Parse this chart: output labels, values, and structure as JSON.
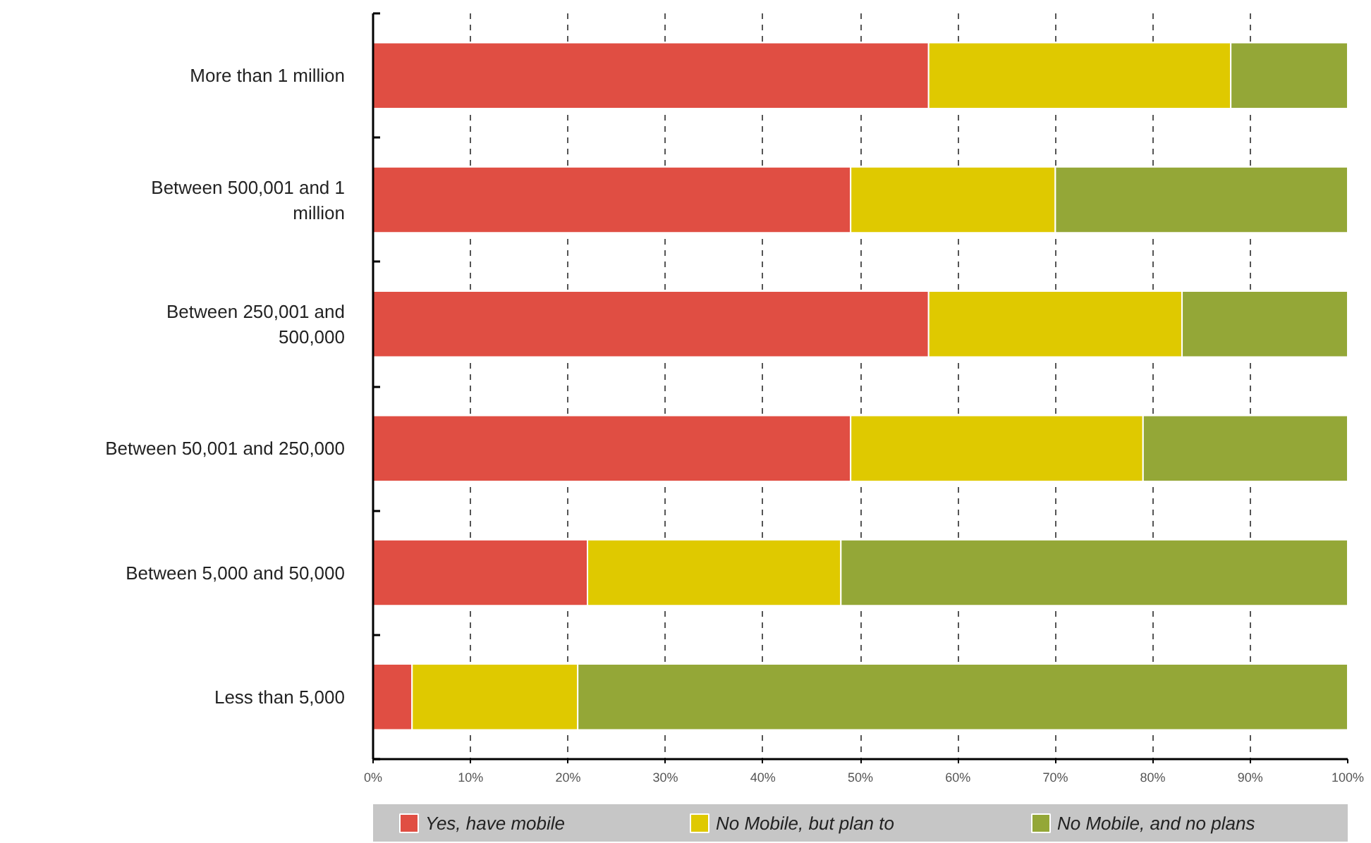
{
  "chart_data": {
    "type": "bar",
    "orientation": "horizontal",
    "stacked": true,
    "categories": [
      "More than 1 million",
      "Between 500,001 and 1 million",
      "Between 250,001 and 500,000",
      "Between 50,001 and 250,000",
      "Between 5,000 and 50,000",
      "Less than 5,000"
    ],
    "series": [
      {
        "name": "Yes, have mobile",
        "color": "#e04e43",
        "values": [
          57,
          49,
          57,
          49,
          22,
          4
        ]
      },
      {
        "name": "No Mobile, but plan to",
        "color": "#dfc900",
        "values": [
          31,
          21,
          26,
          30,
          26,
          17
        ]
      },
      {
        "name": "No Mobile, and no plans",
        "color": "#94a737",
        "values": [
          12,
          30,
          17,
          21,
          52,
          79
        ]
      }
    ],
    "xlim": [
      0,
      100
    ],
    "xticks": [
      {
        "value": 0,
        "label": "0%"
      },
      {
        "value": 10,
        "label": "10%"
      },
      {
        "value": 20,
        "label": "20%"
      },
      {
        "value": 30,
        "label": "30%"
      },
      {
        "value": 40,
        "label": "40%"
      },
      {
        "value": 50,
        "label": "50%"
      },
      {
        "value": 60,
        "label": "60%"
      },
      {
        "value": 70,
        "label": "70%"
      },
      {
        "value": 80,
        "label": "80%"
      },
      {
        "value": 90,
        "label": "90%"
      },
      {
        "value": 100,
        "label": "100%"
      }
    ],
    "grid": "x",
    "legend": "bottom"
  }
}
